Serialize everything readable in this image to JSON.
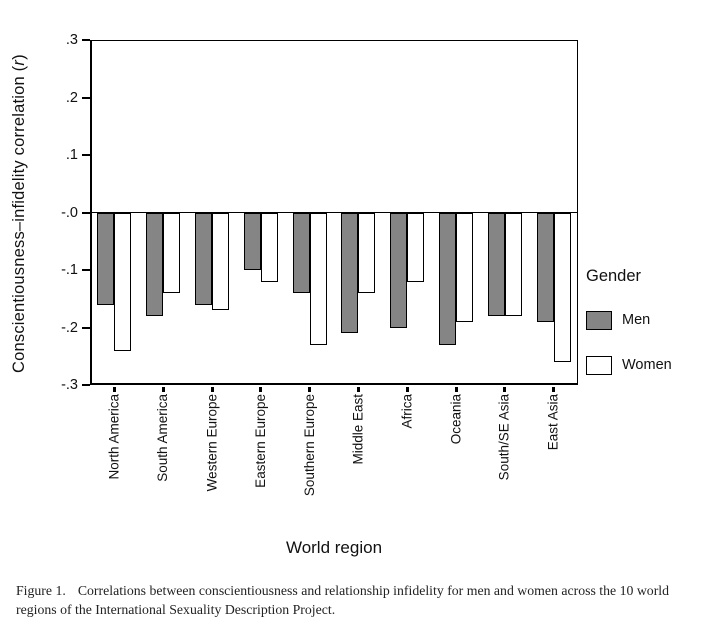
{
  "figure": {
    "caption_label": "Figure 1.",
    "caption_text": "Correlations between conscientiousness and relationship infidelity for men and women across the 10 world regions of the International Sexuality Description Project."
  },
  "chart_data": {
    "type": "bar",
    "title": "",
    "xlabel": "World region",
    "ylabel": "Conscientiousness–infidelity correlation (r)",
    "ylim": [
      -0.3,
      0.3
    ],
    "yticks": [
      0.3,
      0.2,
      0.1,
      0.0,
      -0.1,
      -0.2,
      -0.3
    ],
    "ytick_labels": [
      ".3",
      ".2",
      ".1",
      "-.0",
      "-.1",
      "-.2",
      "-.3"
    ],
    "categories": [
      "North America",
      "South America",
      "Western Europe",
      "Eastern Europe",
      "Southern Europe",
      "Middle East",
      "Africa",
      "Oceania",
      "South/SE Asia",
      "East Asia"
    ],
    "series": [
      {
        "name": "Men",
        "color": "#858585",
        "values": [
          -0.16,
          -0.18,
          -0.16,
          -0.1,
          -0.14,
          -0.21,
          -0.2,
          -0.23,
          -0.18,
          -0.19
        ]
      },
      {
        "name": "Women",
        "color": "#ffffff",
        "values": [
          -0.24,
          -0.14,
          -0.17,
          -0.12,
          -0.23,
          -0.14,
          -0.12,
          -0.19,
          -0.18,
          -0.26
        ]
      }
    ],
    "legend_title": "Gender",
    "legend_position": "right",
    "grid": false,
    "bar_outline": "#000000"
  }
}
